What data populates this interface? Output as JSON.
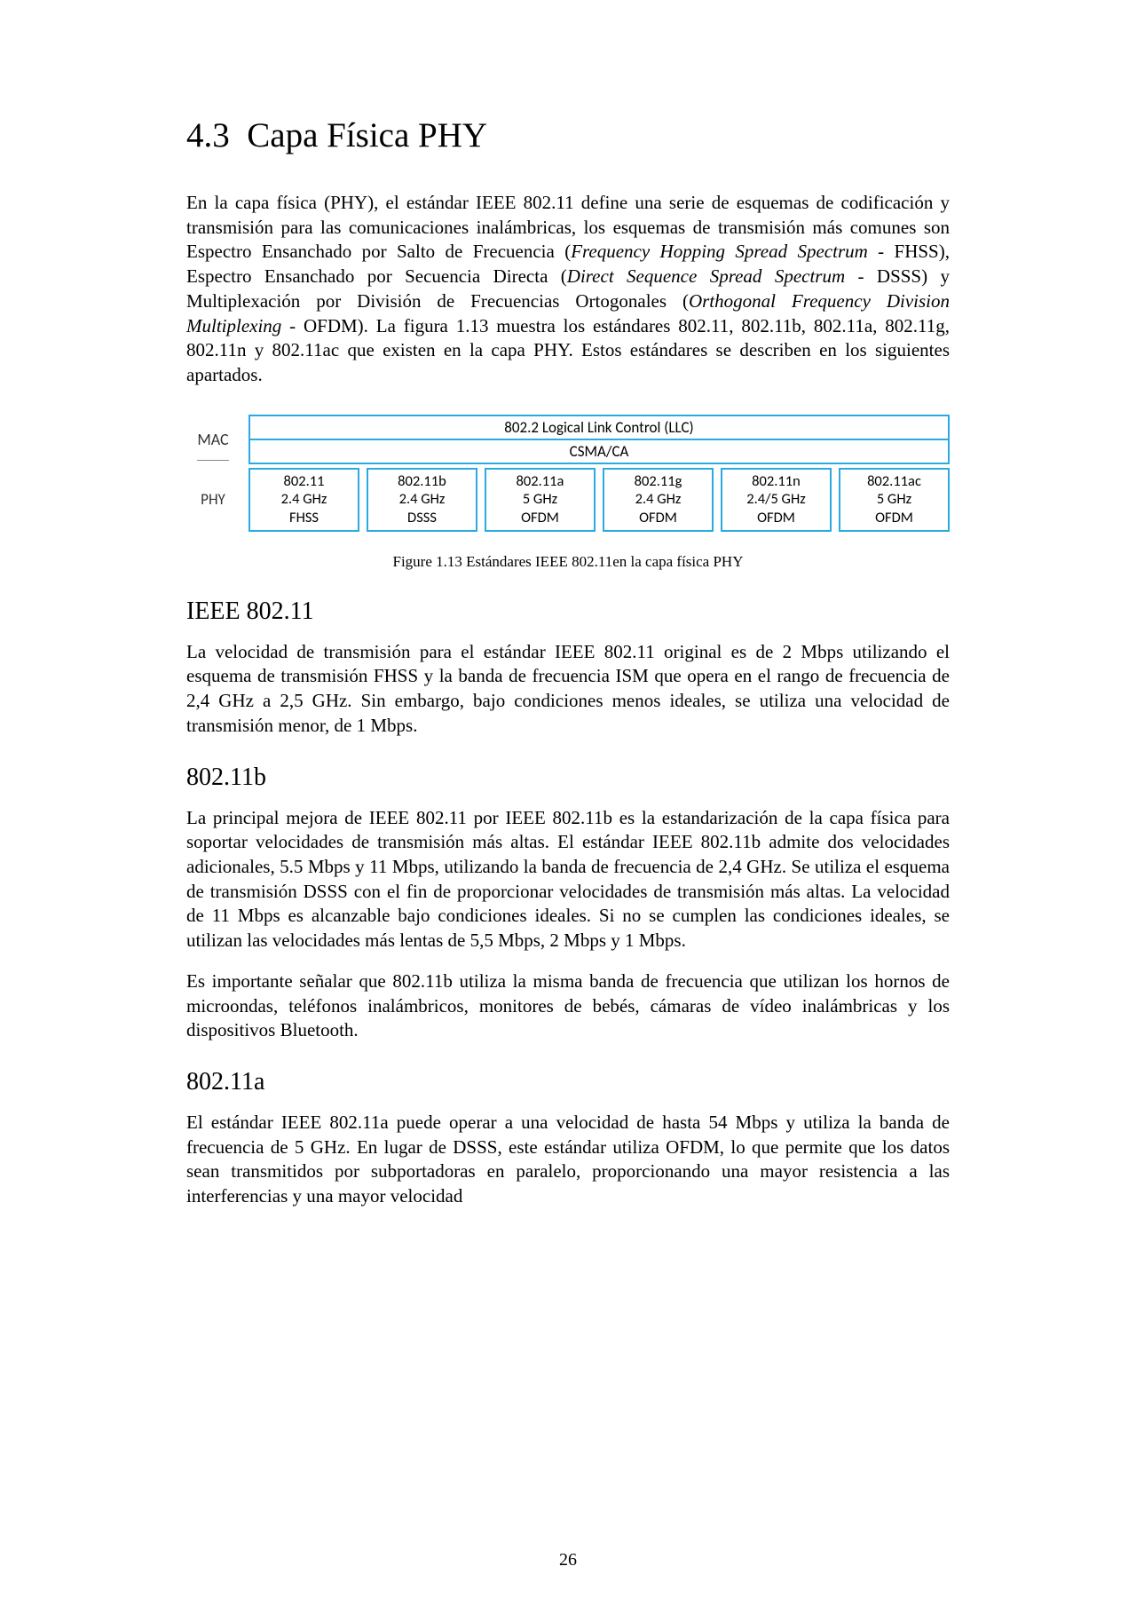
{
  "section_number": "4.3",
  "section_title": "Capa Física PHY",
  "intro_paragraph": "En la capa física (PHY), el estándar IEEE 802.11 define una serie de esquemas de codificación y transmisión para las comunicaciones inalámbricas, los esquemas de transmisión más comunes son Espectro Ensanchado por Salto de Frecuencia (Frequency Hopping Spread Spectrum - FHSS), Espectro Ensanchado por Secuencia Directa (Direct Sequence Spread Spectrum - DSSS) y Multiplexación por División de Frecuencias Ortogonales (Orthogonal Frequency Division Multiplexing - OFDM). La figura 1.13 muestra los estándares 802.11, 802.11b, 802.11a, 802.11g, 802.11n y 802.11ac que existen en la capa PHY. Estos estándares se describen en los siguientes apartados.",
  "diagram": {
    "mac_label": "MAC",
    "phy_label": "PHY",
    "llc_text": "802.2 Logical Link Control (LLC)",
    "csma_text": "CSMA/CA",
    "border_color": "#29abe2",
    "phy_boxes": [
      {
        "name": "802.11",
        "freq": "2.4 GHz",
        "mod": "FHSS"
      },
      {
        "name": "802.11b",
        "freq": "2.4 GHz",
        "mod": "DSSS"
      },
      {
        "name": "802.11a",
        "freq": "5 GHz",
        "mod": "OFDM"
      },
      {
        "name": "802.11g",
        "freq": "2.4 GHz",
        "mod": "OFDM"
      },
      {
        "name": "802.11n",
        "freq": "2.4/5 GHz",
        "mod": "OFDM"
      },
      {
        "name": "802.11ac",
        "freq": "5 GHz",
        "mod": "OFDM"
      }
    ]
  },
  "figure_caption": "Figure 1.13 Estándares IEEE 802.11en la capa física PHY",
  "subsections": [
    {
      "title": "IEEE 802.11",
      "paragraphs": [
        "La velocidad de transmisión para el estándar IEEE 802.11 original es de 2 Mbps utilizando el esquema de transmisión FHSS y la banda de frecuencia ISM que opera en el rango de frecuencia de 2,4 GHz a 2,5 GHz. Sin embargo, bajo condiciones menos ideales, se utiliza una velocidad de transmisión menor, de 1 Mbps."
      ]
    },
    {
      "title": "802.11b",
      "paragraphs": [
        "La principal mejora de IEEE 802.11 por IEEE 802.11b es la estandarización de la capa física para soportar velocidades de transmisión más altas. El estándar IEEE 802.11b admite dos velocidades adicionales, 5.5 Mbps y 11 Mbps, utilizando la banda de frecuencia de 2,4 GHz. Se utiliza el esquema de transmisión DSSS con el fin de proporcionar velocidades de transmisión más altas. La velocidad de 11 Mbps es alcanzable bajo condiciones ideales. Si no se cumplen las condiciones ideales, se utilizan las velocidades más lentas de 5,5 Mbps, 2 Mbps y 1 Mbps.",
        "Es importante señalar que 802.11b utiliza la misma banda de frecuencia que utilizan los hornos de microondas, teléfonos inalámbricos, monitores de bebés, cámaras de vídeo inalámbricas y los dispositivos Bluetooth."
      ]
    },
    {
      "title": "802.11a",
      "paragraphs": [
        "El estándar IEEE 802.11a puede operar a una velocidad de hasta 54 Mbps y utiliza la banda de frecuencia de 5 GHz. En lugar de DSSS, este estándar utiliza OFDM, lo que permite que los datos sean transmitidos por subportadoras en paralelo, proporcionando una mayor resistencia a las interferencias y una mayor velocidad"
      ]
    }
  ],
  "page_number": "26"
}
